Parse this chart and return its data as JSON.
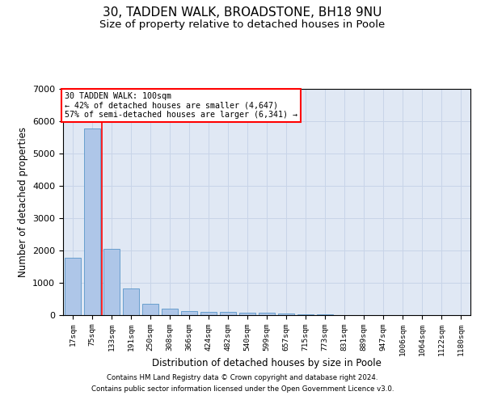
{
  "title1": "30, TADDEN WALK, BROADSTONE, BH18 9NU",
  "title2": "Size of property relative to detached houses in Poole",
  "xlabel": "Distribution of detached houses by size in Poole",
  "ylabel": "Number of detached properties",
  "bar_labels": [
    "17sqm",
    "75sqm",
    "133sqm",
    "191sqm",
    "250sqm",
    "308sqm",
    "366sqm",
    "424sqm",
    "482sqm",
    "540sqm",
    "599sqm",
    "657sqm",
    "715sqm",
    "773sqm",
    "831sqm",
    "889sqm",
    "947sqm",
    "1006sqm",
    "1064sqm",
    "1122sqm",
    "1180sqm"
  ],
  "bar_values": [
    1780,
    5780,
    2060,
    820,
    340,
    200,
    120,
    110,
    100,
    80,
    70,
    50,
    30,
    15,
    10,
    8,
    5,
    5,
    4,
    4,
    3
  ],
  "bar_color": "#aec6e8",
  "bar_edge_color": "#5a96c8",
  "red_line_x": 1.5,
  "annotation_line1": "30 TADDEN WALK: 100sqm",
  "annotation_line2": "← 42% of detached houses are smaller (4,647)",
  "annotation_line3": "57% of semi-detached houses are larger (6,341) →",
  "ylim": [
    0,
    7000
  ],
  "yticks": [
    0,
    1000,
    2000,
    3000,
    4000,
    5000,
    6000,
    7000
  ],
  "grid_color": "#c8d4e8",
  "background_color": "#e0e8f4",
  "footer_line1": "Contains HM Land Registry data © Crown copyright and database right 2024.",
  "footer_line2": "Contains public sector information licensed under the Open Government Licence v3.0.",
  "title1_fontsize": 11,
  "title2_fontsize": 9.5
}
